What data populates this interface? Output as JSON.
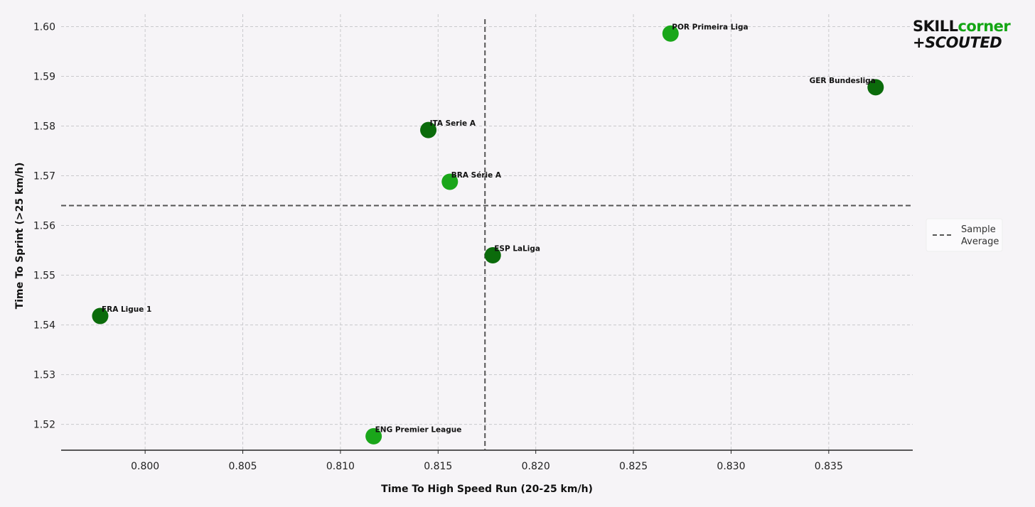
{
  "chart_data": {
    "type": "scatter",
    "xlabel": "Time To High Speed Run (20-25 km/h)",
    "ylabel": "Time To Sprint (>25 km/h)",
    "xlim": [
      0.7957,
      0.8393
    ],
    "ylim": [
      1.5148,
      1.6025
    ],
    "xticks": [
      "0.800",
      "0.805",
      "0.810",
      "0.815",
      "0.820",
      "0.825",
      "0.830",
      "0.835"
    ],
    "yticks": [
      "1.52",
      "1.53",
      "1.54",
      "1.55",
      "1.56",
      "1.57",
      "1.58",
      "1.59",
      "1.60"
    ],
    "grid": true,
    "points": [
      {
        "label": "POR Primeira Liga",
        "x": 0.8269,
        "y": 1.5986,
        "color": "#1aa61a"
      },
      {
        "label": "GER Bundesliga",
        "x": 0.8374,
        "y": 1.5878,
        "color": "#0b6b0b"
      },
      {
        "label": "ITA Serie A",
        "x": 0.8145,
        "y": 1.5792,
        "color": "#0b6b0b"
      },
      {
        "label": "BRA Série A",
        "x": 0.8156,
        "y": 1.5688,
        "color": "#1aa61a"
      },
      {
        "label": "ESP LaLiga",
        "x": 0.8178,
        "y": 1.554,
        "color": "#0b6b0b"
      },
      {
        "label": "FRA Ligue 1",
        "x": 0.7977,
        "y": 1.5418,
        "color": "#0b6b0b"
      },
      {
        "label": "ENG Premier League",
        "x": 0.8117,
        "y": 1.5176,
        "color": "#1aa61a"
      }
    ],
    "reference_lines": {
      "x": 0.8174,
      "y": 1.564
    },
    "legend": {
      "entries": [
        "Sample",
        "Average"
      ],
      "placement": "right"
    }
  },
  "logo": {
    "line1_a": "SKILL",
    "line1_b": "corner",
    "line2": "+SCOUTED",
    "black": "#111111",
    "green": "#14a514"
  }
}
